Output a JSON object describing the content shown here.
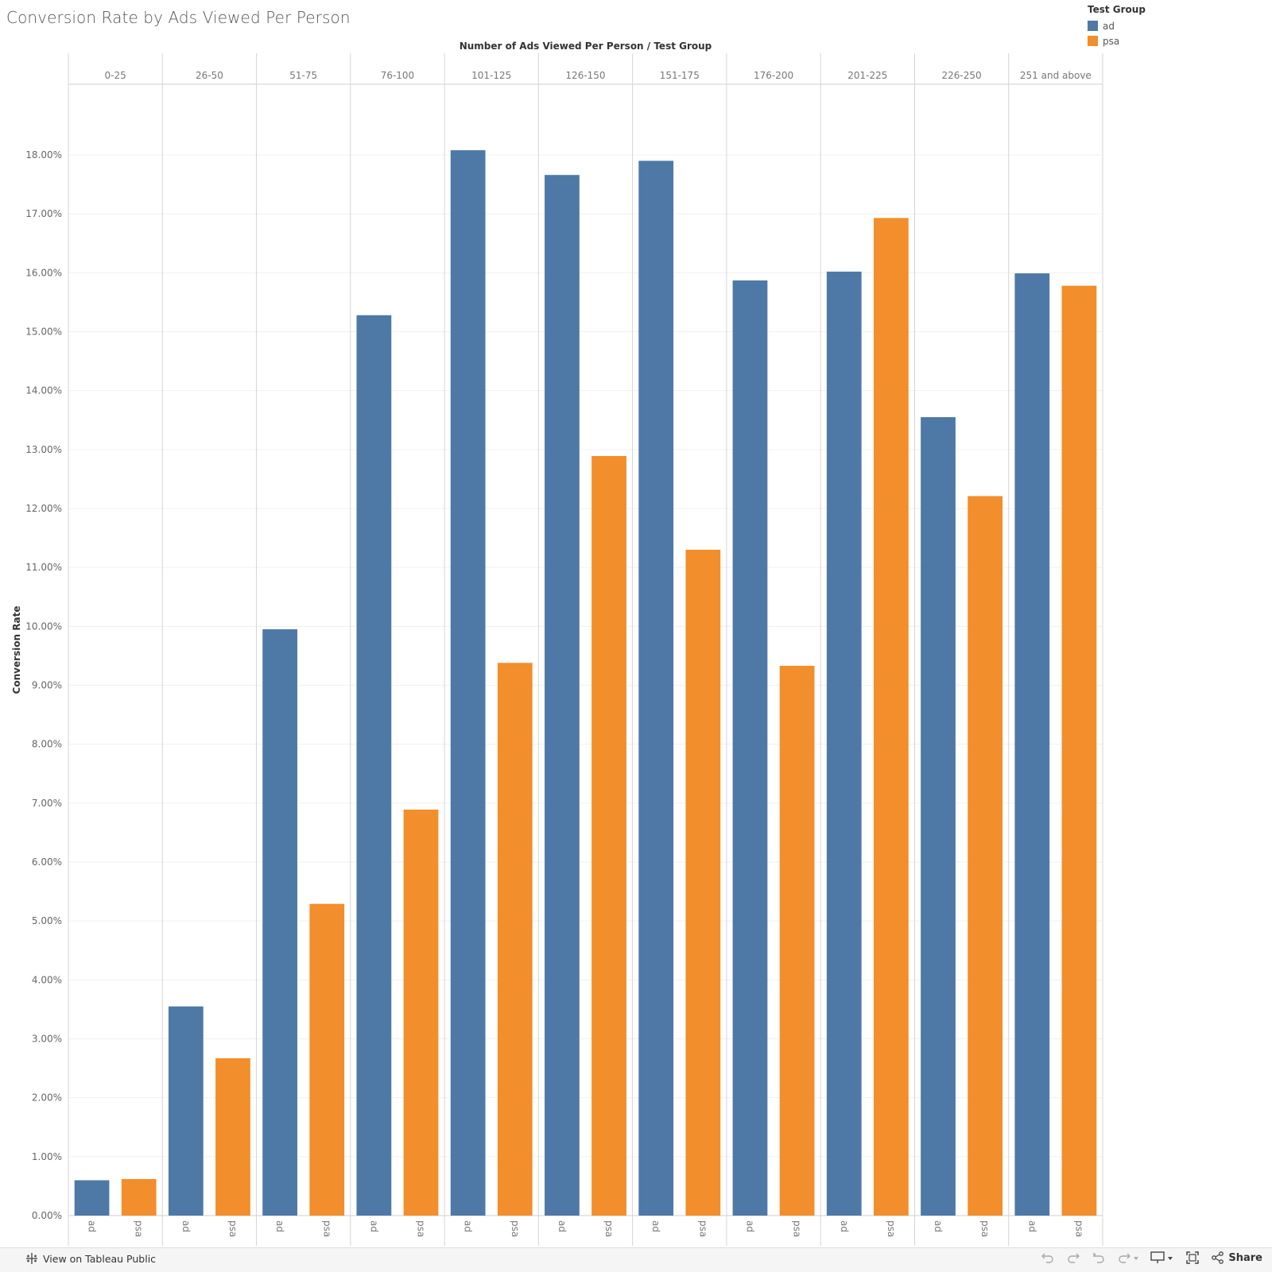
{
  "title": "Conversion Rate by Ads Viewed Per Person",
  "legend": {
    "title": "Test Group",
    "items": [
      {
        "label": "ad",
        "color": "#4e79a7"
      },
      {
        "label": "psa",
        "color": "#f28e2b"
      }
    ]
  },
  "chart_data": {
    "type": "bar",
    "title": "Conversion Rate by Ads Viewed Per Person",
    "column_header": "Number of Ads Viewed Per Person  /  Test Group",
    "ylabel": "Conversion Rate",
    "ylim": [
      0,
      19.2
    ],
    "yticks": [
      0,
      1,
      2,
      3,
      4,
      5,
      6,
      7,
      8,
      9,
      10,
      11,
      12,
      13,
      14,
      15,
      16,
      17,
      18
    ],
    "ytick_format": "0.00%",
    "categories": [
      "0-25",
      "26-50",
      "51-75",
      "76-100",
      "101-125",
      "126-150",
      "151-175",
      "176-200",
      "201-225",
      "226-250",
      "251 and above"
    ],
    "series": [
      {
        "name": "ad",
        "color": "#4e79a7",
        "values": [
          0.6,
          3.55,
          9.95,
          15.28,
          18.08,
          17.66,
          17.9,
          15.87,
          16.02,
          13.55,
          15.99
        ]
      },
      {
        "name": "psa",
        "color": "#f28e2b",
        "values": [
          0.62,
          2.67,
          5.29,
          6.89,
          9.38,
          12.89,
          11.3,
          9.33,
          16.93,
          12.21,
          15.78
        ]
      }
    ],
    "grid": true
  },
  "footer": {
    "view_link": "View on Tableau Public",
    "share": "Share"
  }
}
